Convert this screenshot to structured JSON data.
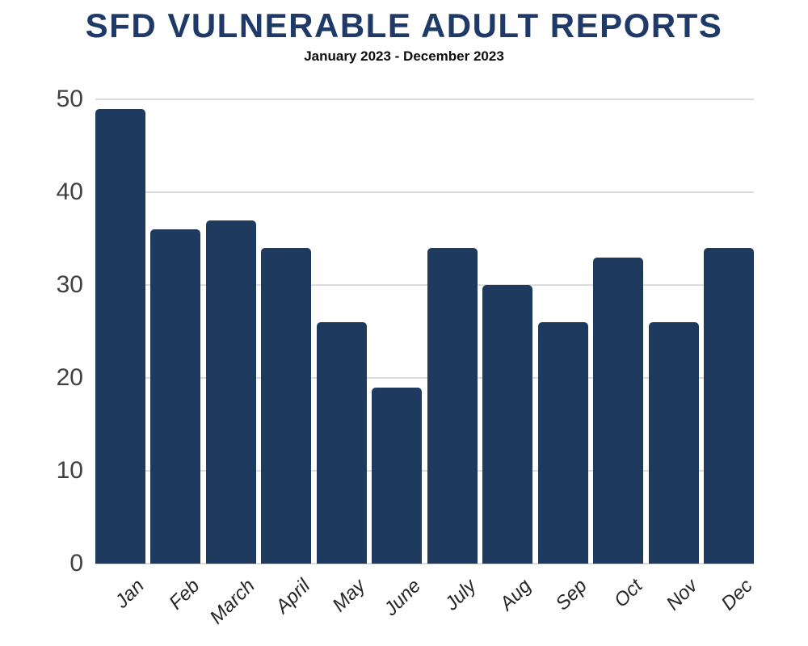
{
  "title": "SFD VULNERABLE ADULT REPORTS",
  "subtitle": "January 2023 - December 2023",
  "colors": {
    "background": "#ffffff",
    "bar": "#1e3a5f",
    "title": "#1f3a68",
    "subtitle": "#0d0d0d",
    "gridline": "#dcdcdc",
    "y_label": "#404040",
    "x_label": "#262626"
  },
  "chart_data": {
    "type": "bar",
    "title": "SFD VULNERABLE ADULT REPORTS",
    "subtitle": "January 2023 - December 2023",
    "categories": [
      "Jan",
      "Feb",
      "March",
      "April",
      "May",
      "June",
      "July",
      "Aug",
      "Sep",
      "Oct",
      "Nov",
      "Dec"
    ],
    "values": [
      49,
      36,
      37,
      34,
      26,
      19,
      34,
      30,
      26,
      33,
      26,
      34
    ],
    "xlabel": "",
    "ylabel": "",
    "ylim": [
      0,
      50
    ],
    "y_ticks": [
      0,
      10,
      20,
      30,
      40,
      50
    ],
    "grid": true,
    "legend": false,
    "bar_corner_radius": 5
  }
}
